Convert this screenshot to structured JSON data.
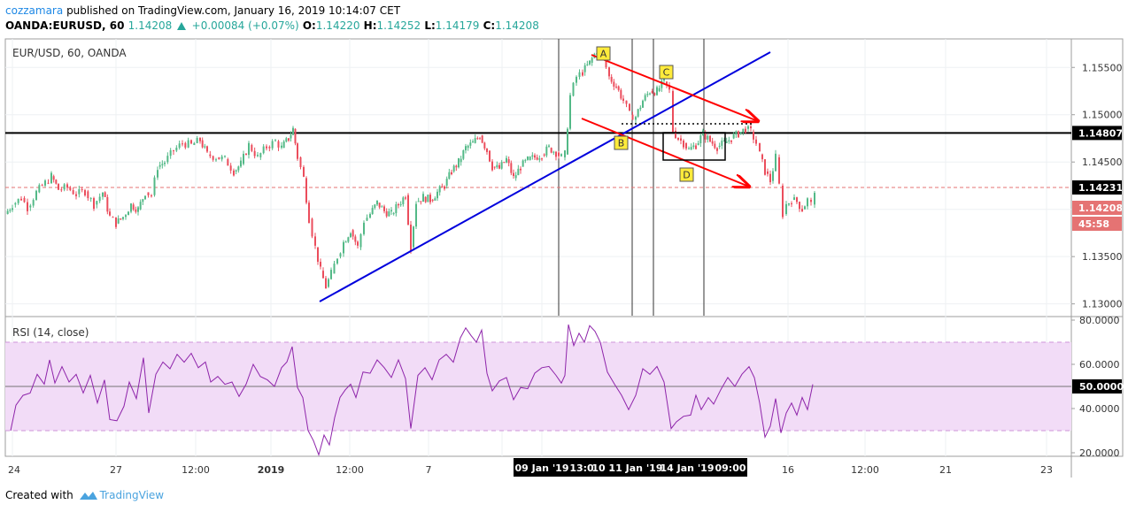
{
  "header": {
    "author": "cozzamara",
    "published_text": "published on TradingView.com, January 16, 2019 10:14:07 CET",
    "symbol": "OANDA:EURUSD, 60",
    "last": "1.14208",
    "change": "+0.00084 (+0.07%)",
    "o_label": "O:",
    "o_value": "1.14220",
    "h_label": "H:",
    "h_value": "1.14252",
    "l_label": "L:",
    "l_value": "1.14179",
    "c_label": "C:",
    "c_value": "1.14208"
  },
  "footer": {
    "created_with": "Created with",
    "brand": "TradingView"
  },
  "colors": {
    "up": "#53b987",
    "down": "#eb4d5c",
    "trendline": "#0000dd",
    "arrow": "#ff0000",
    "rsi": "#8e24aa",
    "rsi_band": "#e1bee7",
    "dashed_level": "#e57373",
    "label_box": "#ffeb3b"
  },
  "chart_data": [
    {
      "type": "candlestick",
      "title": "EUR/USD, 60, OANDA",
      "ylim": [
        1.1295,
        1.1568
      ],
      "y_ticks": [
        "1.15500",
        "1.15000",
        "1.14500",
        "1.13500",
        "1.13000"
      ],
      "price_tags": [
        {
          "text": "1.14807",
          "style": "black"
        },
        {
          "text": "1.14231",
          "style": "black"
        },
        {
          "text": "1.14208",
          "style": "red"
        },
        {
          "text": "45:58",
          "style": "red"
        }
      ],
      "key_level": 1.14807,
      "dashed_level": 1.14231,
      "time_labels": [
        "24",
        "27",
        "12:00",
        "2019",
        "12:00",
        "7",
        "16",
        "12:00",
        "21",
        "23"
      ],
      "time_markers": [
        "09 Jan '19",
        "13:0",
        "10 .",
        "11 Jan '19",
        "14 Jan '19",
        "09:00"
      ],
      "pattern_labels": [
        "A",
        "B",
        "C",
        "D"
      ],
      "series_path": [
        [
          0,
          1.1395
        ],
        [
          8,
          1.1405
        ],
        [
          18,
          1.1412
        ],
        [
          25,
          1.1402
        ],
        [
          35,
          1.1418
        ],
        [
          45,
          1.1428
        ],
        [
          52,
          1.1435
        ],
        [
          60,
          1.1421
        ],
        [
          70,
          1.1423
        ],
        [
          80,
          1.1416
        ],
        [
          90,
          1.1419
        ],
        [
          100,
          1.1405
        ],
        [
          110,
          1.1418
        ],
        [
          118,
          1.1392
        ],
        [
          125,
          1.1385
        ],
        [
          133,
          1.1392
        ],
        [
          142,
          1.1405
        ],
        [
          150,
          1.14
        ],
        [
          158,
          1.1418
        ],
        [
          165,
          1.1415
        ],
        [
          172,
          1.1445
        ],
        [
          180,
          1.145
        ],
        [
          190,
          1.1462
        ],
        [
          200,
          1.147
        ],
        [
          210,
          1.1468
        ],
        [
          220,
          1.1473
        ],
        [
          228,
          1.1458
        ],
        [
          238,
          1.1455
        ],
        [
          248,
          1.1453
        ],
        [
          258,
          1.144
        ],
        [
          266,
          1.1448
        ],
        [
          275,
          1.1468
        ],
        [
          285,
          1.1455
        ],
        [
          295,
          1.1466
        ],
        [
          305,
          1.1472
        ],
        [
          312,
          1.1465
        ],
        [
          320,
          1.1475
        ],
        [
          325,
          1.1485
        ],
        [
          330,
          1.1455
        ],
        [
          337,
          1.1433
        ],
        [
          343,
          1.139
        ],
        [
          350,
          1.136
        ],
        [
          356,
          1.1335
        ],
        [
          362,
          1.1318
        ],
        [
          368,
          1.1332
        ],
        [
          375,
          1.135
        ],
        [
          382,
          1.1365
        ],
        [
          390,
          1.1378
        ],
        [
          398,
          1.136
        ],
        [
          405,
          1.1388
        ],
        [
          412,
          1.1395
        ],
        [
          420,
          1.1407
        ],
        [
          428,
          1.1398
        ],
        [
          436,
          1.1395
        ],
        [
          444,
          1.1405
        ],
        [
          452,
          1.1415
        ],
        [
          458,
          1.136
        ],
        [
          464,
          1.1408
        ],
        [
          472,
          1.1413
        ],
        [
          480,
          1.141
        ],
        [
          488,
          1.1418
        ],
        [
          496,
          1.1425
        ],
        [
          504,
          1.144
        ],
        [
          512,
          1.145
        ],
        [
          520,
          1.1465
        ],
        [
          528,
          1.147
        ],
        [
          536,
          1.1478
        ],
        [
          544,
          1.1462
        ],
        [
          550,
          1.1445
        ],
        [
          558,
          1.1443
        ],
        [
          566,
          1.1453
        ],
        [
          574,
          1.1433
        ],
        [
          582,
          1.1445
        ],
        [
          590,
          1.1452
        ],
        [
          598,
          1.1455
        ],
        [
          606,
          1.1458
        ],
        [
          614,
          1.1465
        ],
        [
          622,
          1.146
        ],
        [
          628,
          1.1455
        ],
        [
          632,
          1.1458
        ],
        [
          638,
          1.152
        ],
        [
          645,
          1.154
        ],
        [
          652,
          1.1545
        ],
        [
          660,
          1.1555
        ],
        [
          668,
          1.1568
        ],
        [
          675,
          1.156
        ],
        [
          682,
          1.154
        ],
        [
          690,
          1.153
        ],
        [
          698,
          1.1515
        ],
        [
          705,
          1.15
        ],
        [
          712,
          1.1498
        ],
        [
          720,
          1.1515
        ],
        [
          728,
          1.1525
        ],
        [
          736,
          1.1525
        ],
        [
          744,
          1.1535
        ],
        [
          750,
          1.1525
        ],
        [
          754,
          1.1483
        ],
        [
          760,
          1.1475
        ],
        [
          766,
          1.147
        ],
        [
          772,
          1.1463
        ],
        [
          780,
          1.1468
        ],
        [
          788,
          1.148
        ],
        [
          796,
          1.1472
        ],
        [
          804,
          1.1466
        ],
        [
          812,
          1.147
        ],
        [
          820,
          1.1475
        ],
        [
          828,
          1.148
        ],
        [
          836,
          1.1485
        ],
        [
          842,
          1.1482
        ],
        [
          848,
          1.147
        ],
        [
          852,
          1.1458
        ],
        [
          858,
          1.144
        ],
        [
          864,
          1.143
        ],
        [
          870,
          1.1455
        ],
        [
          874,
          1.1425
        ],
        [
          878,
          1.1395
        ],
        [
          882,
          1.1405
        ],
        [
          888,
          1.141
        ],
        [
          894,
          1.1408
        ],
        [
          900,
          1.14
        ],
        [
          906,
          1.141
        ],
        [
          910,
          1.1405
        ],
        [
          914,
          1.1421
        ]
      ]
    },
    {
      "type": "line",
      "title": "RSI (14, close)",
      "ylim": [
        17,
        80
      ],
      "y_ticks": [
        "80.0000",
        "60.0000",
        "40.0000",
        "20.0000"
      ],
      "band": [
        30,
        70
      ],
      "midline": 50,
      "current_tag": "50.0000",
      "values": [
        [
          6,
          30
        ],
        [
          12,
          42
        ],
        [
          20,
          45
        ],
        [
          28,
          47
        ],
        [
          36,
          55
        ],
        [
          44,
          52
        ],
        [
          50,
          62
        ],
        [
          56,
          52
        ],
        [
          64,
          58
        ],
        [
          72,
          52
        ],
        [
          80,
          55
        ],
        [
          88,
          48
        ],
        [
          96,
          55
        ],
        [
          104,
          43
        ],
        [
          112,
          52
        ],
        [
          118,
          35
        ],
        [
          126,
          34
        ],
        [
          134,
          42
        ],
        [
          140,
          52
        ],
        [
          148,
          45
        ],
        [
          156,
          62
        ],
        [
          162,
          38
        ],
        [
          170,
          55
        ],
        [
          178,
          62
        ],
        [
          186,
          58
        ],
        [
          194,
          65
        ],
        [
          202,
          60
        ],
        [
          210,
          65
        ],
        [
          218,
          58
        ],
        [
          226,
          62
        ],
        [
          232,
          52
        ],
        [
          240,
          55
        ],
        [
          248,
          50
        ],
        [
          256,
          52
        ],
        [
          264,
          45
        ],
        [
          272,
          52
        ],
        [
          280,
          60
        ],
        [
          288,
          55
        ],
        [
          296,
          52
        ],
        [
          304,
          50
        ],
        [
          312,
          58
        ],
        [
          318,
          62
        ],
        [
          324,
          68
        ],
        [
          330,
          50
        ],
        [
          336,
          44
        ],
        [
          342,
          30
        ],
        [
          348,
          25
        ],
        [
          354,
          20
        ],
        [
          360,
          28
        ],
        [
          366,
          24
        ],
        [
          372,
          35
        ],
        [
          378,
          45
        ],
        [
          384,
          48
        ],
        [
          390,
          52
        ],
        [
          396,
          45
        ],
        [
          404,
          57
        ],
        [
          412,
          55
        ],
        [
          420,
          62
        ],
        [
          428,
          58
        ],
        [
          436,
          55
        ],
        [
          444,
          62
        ],
        [
          452,
          54
        ],
        [
          458,
          30
        ],
        [
          466,
          55
        ],
        [
          474,
          58
        ],
        [
          482,
          54
        ],
        [
          490,
          62
        ],
        [
          498,
          65
        ],
        [
          506,
          60
        ],
        [
          514,
          72
        ],
        [
          520,
          76
        ],
        [
          526,
          74
        ],
        [
          532,
          70
        ],
        [
          538,
          76
        ],
        [
          544,
          55
        ],
        [
          550,
          48
        ],
        [
          558,
          52
        ],
        [
          566,
          55
        ],
        [
          574,
          44
        ],
        [
          582,
          50
        ],
        [
          590,
          48
        ],
        [
          598,
          56
        ],
        [
          606,
          58
        ],
        [
          614,
          60
        ],
        [
          622,
          55
        ],
        [
          628,
          52
        ],
        [
          632,
          54
        ],
        [
          636,
          78
        ],
        [
          642,
          68
        ],
        [
          648,
          75
        ],
        [
          654,
          70
        ],
        [
          660,
          78
        ],
        [
          666,
          74
        ],
        [
          672,
          70
        ],
        [
          680,
          56
        ],
        [
          688,
          52
        ],
        [
          696,
          46
        ],
        [
          704,
          40
        ],
        [
          712,
          45
        ],
        [
          720,
          58
        ],
        [
          728,
          55
        ],
        [
          736,
          60
        ],
        [
          744,
          52
        ],
        [
          748,
          42
        ],
        [
          752,
          30
        ],
        [
          758,
          34
        ],
        [
          766,
          36
        ],
        [
          774,
          38
        ],
        [
          780,
          46
        ],
        [
          786,
          40
        ],
        [
          794,
          44
        ],
        [
          800,
          42
        ],
        [
          808,
          48
        ],
        [
          816,
          55
        ],
        [
          824,
          50
        ],
        [
          832,
          56
        ],
        [
          840,
          58
        ],
        [
          846,
          54
        ],
        [
          852,
          42
        ],
        [
          858,
          28
        ],
        [
          864,
          32
        ],
        [
          870,
          45
        ],
        [
          876,
          28
        ],
        [
          882,
          38
        ],
        [
          888,
          42
        ],
        [
          894,
          38
        ],
        [
          900,
          45
        ],
        [
          906,
          40
        ],
        [
          912,
          50
        ]
      ]
    }
  ]
}
